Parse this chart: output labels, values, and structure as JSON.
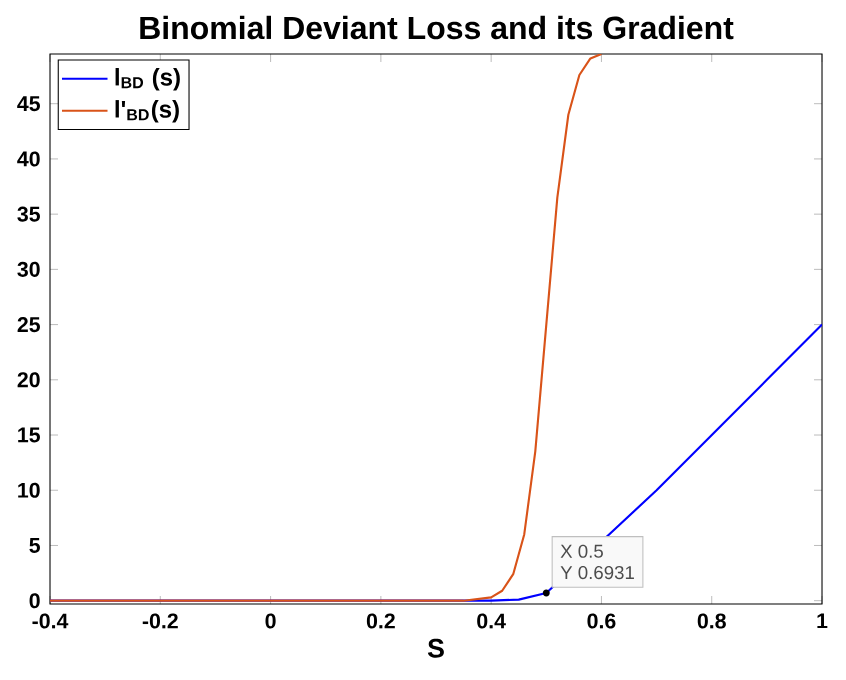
{
  "chart_data": {
    "type": "line",
    "title": "Binomial Deviant Loss and its Gradient",
    "xlabel": "S",
    "xlim": [
      -0.4,
      1
    ],
    "ylim": [
      -0.3,
      49.5
    ],
    "xticks": [
      -0.4,
      -0.2,
      0,
      0.2,
      0.4,
      0.6,
      0.8,
      1
    ],
    "yticks": [
      0,
      5,
      10,
      15,
      20,
      25,
      30,
      35,
      40,
      45
    ],
    "legend": "top left",
    "grid": false,
    "marker": "none",
    "line_style": "solid",
    "series": [
      {
        "name": "l$_{BD}$ (s)",
        "color": "#0000ff",
        "x": [
          -0.4,
          0.3,
          0.35,
          0.4,
          0.45,
          0.5,
          0.7,
          0.8,
          0.9,
          1
        ],
        "values": [
          0,
          0,
          0,
          0,
          0.1,
          0.6931,
          10,
          15,
          20,
          25
        ]
      },
      {
        "name": "l'$_{BD}$(s)",
        "color": "#d95319",
        "x": [
          -0.4,
          0.3,
          0.35,
          0.4,
          0.42,
          0.44,
          0.46,
          0.48,
          0.5,
          0.52,
          0.54,
          0.56,
          0.58,
          0.6
        ],
        "values": [
          0,
          0,
          0,
          0.3,
          0.9,
          2.4,
          6,
          13.5,
          25,
          36.5,
          44,
          47.6,
          49.1,
          49.5
        ]
      }
    ],
    "annotations": [
      {
        "text": "X 0.5",
        "x": 0.5,
        "y": 0.6931
      },
      "Y 0.6931"
    ]
  }
}
